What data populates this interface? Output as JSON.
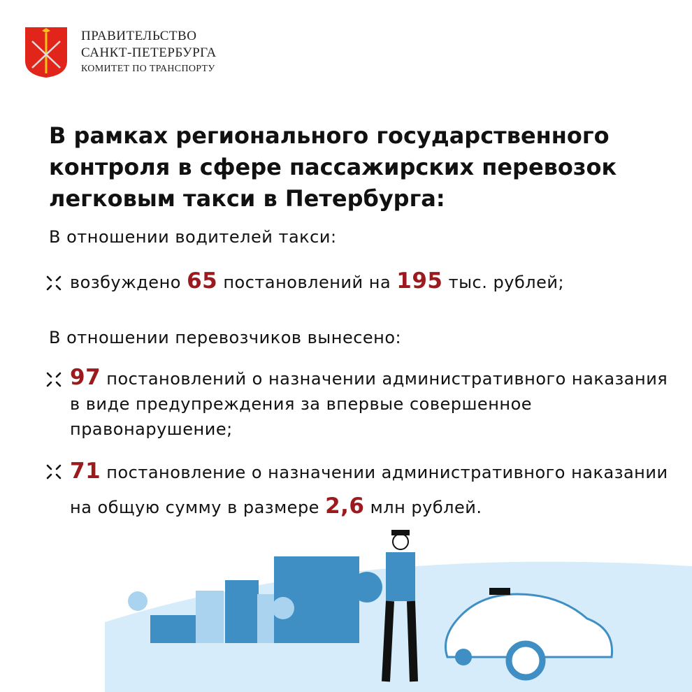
{
  "header": {
    "org_line1": "ПРАВИТЕЛЬСТВО",
    "org_line2": "САНКТ-ПЕТЕРБУРГА",
    "org_line3": "КОМИТЕТ ПО ТРАНСПОРТУ"
  },
  "title": "В рамках регионального государственного контроля в сфере пассажирских перевозок легковым такси в Петербурга:",
  "section1": {
    "heading": "В отношении водителей такси:",
    "item1": {
      "pre": "возбуждено ",
      "n1": "65",
      "mid": " постановлений на ",
      "n2": "195",
      "post": " тыс. рублей;"
    }
  },
  "section2": {
    "heading": "В отношении перевозчиков вынесено:",
    "item1": {
      "n1": "97",
      "text": " постановлений о назначении административного наказания в виде предупреждения за впервые совершенное правонарушение;"
    },
    "item2": {
      "n1": "71",
      "text": " постановление о назначении административного наказании на общую сумму в размере ",
      "n2": "2,6",
      "post": " млн рублей."
    }
  },
  "colors": {
    "accent": "#9b1a1d",
    "crest_red": "#e1251b",
    "illustration_blue": "#3f8fc4",
    "ground": "#d6ecfa"
  },
  "icons": {
    "bullet": "inward-arrows-icon",
    "crest": "spb-coat-of-arms"
  }
}
